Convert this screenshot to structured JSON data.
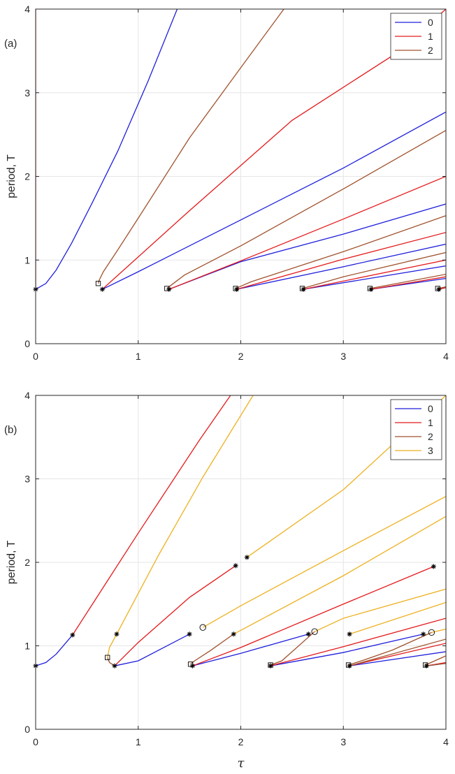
{
  "colors": {
    "0": "#1f1fdc",
    "1": "#e41a1c",
    "2": "#a0522d",
    "3": "#edb120",
    "grid": "#e6e6e6",
    "axis": "#262626"
  },
  "chart_data": [
    {
      "type": "line",
      "panel_label": "(a)",
      "xlabel": "",
      "ylabel": "period, T",
      "xlim": [
        0,
        4
      ],
      "ylim": [
        0,
        4
      ],
      "xticks": [
        0,
        1,
        2,
        3,
        4
      ],
      "yticks": [
        0,
        1,
        2,
        3,
        4
      ],
      "grid": true,
      "legend": {
        "position": "top-right",
        "entries": [
          "0",
          "1",
          "2"
        ]
      },
      "series": [
        {
          "name": "0",
          "curves": [
            [
              [
                0,
                0.65
              ],
              [
                0.1,
                0.72
              ],
              [
                0.2,
                0.88
              ],
              [
                0.35,
                1.2
              ],
              [
                0.55,
                1.68
              ],
              [
                0.8,
                2.3
              ],
              [
                1.1,
                3.15
              ],
              [
                1.38,
                4.0
              ]
            ],
            [
              [
                0.65,
                0.65
              ],
              [
                1.0,
                0.86
              ],
              [
                2.0,
                1.48
              ],
              [
                3.0,
                2.1
              ],
              [
                4.0,
                2.77
              ]
            ],
            [
              [
                1.3,
                0.65
              ],
              [
                2.0,
                0.98
              ],
              [
                3.0,
                1.31
              ],
              [
                4.0,
                1.67
              ]
            ],
            [
              [
                1.96,
                0.65
              ],
              [
                3.0,
                0.92
              ],
              [
                4.0,
                1.19
              ]
            ],
            [
              [
                2.61,
                0.65
              ],
              [
                4.0,
                0.93
              ]
            ],
            [
              [
                3.27,
                0.65
              ],
              [
                4.0,
                0.78
              ]
            ],
            [
              [
                3.93,
                0.65
              ],
              [
                4.0,
                0.67
              ]
            ]
          ]
        },
        {
          "name": "1",
          "curves": [
            [
              [
                0,
                0.65
              ],
              [
                0,
                4.0
              ]
            ],
            [
              [
                0.65,
                0.65
              ],
              [
                1.5,
                1.59
              ],
              [
                2.5,
                2.67
              ],
              [
                3.5,
                3.46
              ],
              [
                4.0,
                4.0
              ]
            ],
            [
              [
                1.3,
                0.65
              ],
              [
                2.0,
                0.99
              ],
              [
                3.0,
                1.49
              ],
              [
                4.0,
                2.0
              ]
            ],
            [
              [
                1.96,
                0.65
              ],
              [
                3.0,
                1.01
              ],
              [
                4.0,
                1.33
              ]
            ],
            [
              [
                2.61,
                0.65
              ],
              [
                4.0,
                1.0
              ]
            ],
            [
              [
                3.27,
                0.65
              ],
              [
                4.0,
                0.8
              ]
            ],
            [
              [
                3.93,
                0.65
              ],
              [
                4.0,
                0.67
              ]
            ]
          ]
        },
        {
          "name": "2",
          "curves": [
            [
              [
                0.61,
                0.72
              ],
              [
                0.62,
                0.76
              ],
              [
                0.66,
                0.86
              ],
              [
                0.8,
                1.12
              ],
              [
                1.0,
                1.5
              ],
              [
                1.5,
                2.46
              ],
              [
                2.0,
                3.3
              ],
              [
                2.42,
                4.0
              ]
            ],
            [
              [
                1.28,
                0.66
              ],
              [
                1.3,
                0.68
              ],
              [
                1.45,
                0.82
              ],
              [
                2.0,
                1.17
              ],
              [
                3.0,
                1.85
              ],
              [
                4.0,
                2.55
              ]
            ],
            [
              [
                1.95,
                0.66
              ],
              [
                2.1,
                0.74
              ],
              [
                3.0,
                1.1
              ],
              [
                4.0,
                1.53
              ]
            ],
            [
              [
                2.6,
                0.66
              ],
              [
                3.0,
                0.8
              ],
              [
                4.0,
                1.09
              ]
            ],
            [
              [
                3.26,
                0.66
              ],
              [
                4.0,
                0.83
              ]
            ],
            [
              [
                3.92,
                0.66
              ],
              [
                4.0,
                0.68
              ]
            ]
          ]
        }
      ],
      "star_markers": [
        [
          0,
          0.65
        ],
        [
          0.65,
          0.65
        ],
        [
          1.3,
          0.65
        ],
        [
          1.96,
          0.65
        ],
        [
          2.61,
          0.65
        ],
        [
          3.27,
          0.65
        ],
        [
          3.93,
          0.65
        ]
      ],
      "square_markers": [
        [
          0.61,
          0.72
        ],
        [
          1.28,
          0.66
        ],
        [
          1.95,
          0.66
        ],
        [
          2.6,
          0.66
        ],
        [
          3.26,
          0.66
        ],
        [
          3.92,
          0.66
        ]
      ],
      "circle_markers": []
    },
    {
      "type": "line",
      "panel_label": "(b)",
      "xlabel": "τ",
      "ylabel": "period, T",
      "xlim": [
        0,
        4
      ],
      "ylim": [
        0,
        4
      ],
      "xticks": [
        0,
        1,
        2,
        3,
        4
      ],
      "yticks": [
        0,
        1,
        2,
        3,
        4
      ],
      "grid": true,
      "legend": {
        "position": "top-right",
        "entries": [
          "0",
          "1",
          "2",
          "3"
        ]
      },
      "series": [
        {
          "name": "0",
          "curves": [
            [
              [
                0,
                0.76
              ],
              [
                0.1,
                0.8
              ],
              [
                0.2,
                0.9
              ],
              [
                0.36,
                1.13
              ]
            ],
            [
              [
                0.77,
                0.76
              ],
              [
                1.0,
                0.82
              ],
              [
                1.5,
                1.14
              ]
            ],
            [
              [
                1.53,
                0.76
              ],
              [
                2.0,
                0.91
              ],
              [
                2.66,
                1.14
              ]
            ],
            [
              [
                2.29,
                0.76
              ],
              [
                3.0,
                0.92
              ],
              [
                3.78,
                1.14
              ]
            ],
            [
              [
                3.06,
                0.76
              ],
              [
                4.0,
                0.93
              ]
            ],
            [
              [
                3.81,
                0.76
              ],
              [
                4.0,
                0.79
              ]
            ]
          ]
        },
        {
          "name": "1",
          "curves": [
            [
              [
                0.36,
                1.13
              ],
              [
                1.0,
                2.35
              ],
              [
                1.6,
                3.47
              ],
              [
                1.9,
                4.0
              ]
            ],
            [
              [
                0.77,
                0.76
              ],
              [
                1.0,
                1.04
              ],
              [
                1.5,
                1.58
              ],
              [
                1.95,
                1.96
              ]
            ],
            [
              [
                1.53,
                0.76
              ],
              [
                2.0,
                0.98
              ],
              [
                3.0,
                1.5
              ],
              [
                3.88,
                1.95
              ]
            ],
            [
              [
                2.29,
                0.76
              ],
              [
                3.0,
                0.99
              ],
              [
                4.0,
                1.33
              ]
            ],
            [
              [
                3.06,
                0.76
              ],
              [
                4.0,
                1.03
              ]
            ],
            [
              [
                3.81,
                0.76
              ],
              [
                4.0,
                0.8
              ]
            ]
          ]
        },
        {
          "name": "2",
          "curves": [
            [
              [
                0.77,
                0.76
              ],
              [
                0.72,
                0.8
              ],
              [
                0.7,
                0.86
              ]
            ],
            [
              [
                1.51,
                0.78
              ],
              [
                1.55,
                0.82
              ],
              [
                1.7,
                0.94
              ],
              [
                1.93,
                1.14
              ]
            ],
            [
              [
                2.29,
                0.77
              ],
              [
                2.4,
                0.82
              ],
              [
                2.72,
                1.17
              ]
            ],
            [
              [
                3.05,
                0.77
              ],
              [
                3.2,
                0.83
              ],
              [
                3.48,
                0.95
              ],
              [
                3.86,
                1.16
              ]
            ],
            [
              [
                3.8,
                0.77
              ],
              [
                4.0,
                0.88
              ]
            ],
            [
              [
                3.06,
                0.76
              ],
              [
                4.0,
                1.08
              ]
            ],
            [
              [
                3.81,
                0.76
              ],
              [
                4.0,
                0.79
              ]
            ]
          ]
        },
        {
          "name": "3",
          "curves": [
            [
              [
                0.7,
                0.86
              ],
              [
                0.72,
                0.98
              ],
              [
                0.79,
                1.14
              ],
              [
                1.2,
                2.09
              ],
              [
                1.63,
                3.02
              ],
              [
                2.12,
                4.0
              ]
            ],
            [
              [
                1.63,
                1.22
              ],
              [
                2.0,
                1.48
              ],
              [
                3.0,
                2.14
              ],
              [
                4.0,
                2.79
              ]
            ],
            [
              [
                1.93,
                1.14
              ],
              [
                3.0,
                1.84
              ],
              [
                4.0,
                2.55
              ]
            ],
            [
              [
                2.72,
                1.17
              ],
              [
                3.0,
                1.33
              ],
              [
                4.0,
                1.68
              ]
            ],
            [
              [
                3.06,
                1.14
              ],
              [
                4.0,
                1.52
              ]
            ],
            [
              [
                3.86,
                1.16
              ],
              [
                4.0,
                1.2
              ]
            ],
            [
              [
                2.06,
                2.06
              ],
              [
                3.0,
                2.87
              ],
              [
                4.0,
                4.0
              ]
            ]
          ]
        }
      ],
      "star_markers": [
        [
          0,
          0.76
        ],
        [
          0.36,
          1.13
        ],
        [
          0.79,
          1.14
        ],
        [
          0.77,
          0.76
        ],
        [
          1.5,
          1.14
        ],
        [
          1.53,
          0.76
        ],
        [
          1.93,
          1.14
        ],
        [
          1.95,
          1.96
        ],
        [
          2.06,
          2.06
        ],
        [
          2.29,
          0.76
        ],
        [
          2.66,
          1.14
        ],
        [
          3.06,
          1.14
        ],
        [
          3.06,
          0.76
        ],
        [
          3.78,
          1.14
        ],
        [
          3.81,
          0.76
        ],
        [
          3.88,
          1.95
        ]
      ],
      "square_markers": [
        [
          0.7,
          0.86
        ],
        [
          1.51,
          0.78
        ],
        [
          2.29,
          0.77
        ],
        [
          3.05,
          0.77
        ],
        [
          3.8,
          0.77
        ]
      ],
      "circle_markers": [
        [
          1.63,
          1.22
        ],
        [
          2.72,
          1.17
        ],
        [
          3.86,
          1.16
        ]
      ]
    }
  ]
}
